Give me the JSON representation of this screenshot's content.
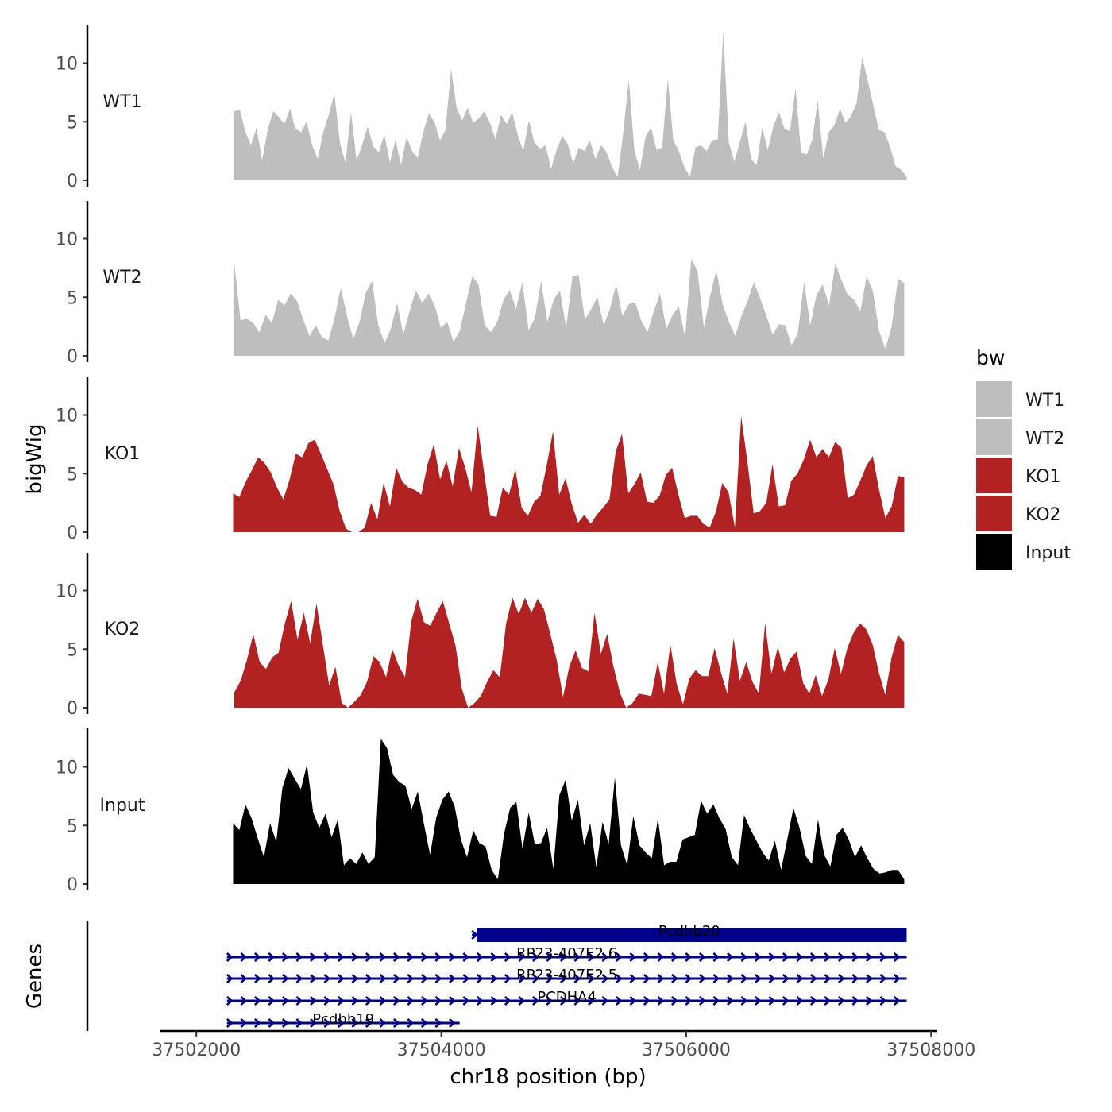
{
  "chart_data": {
    "type": "area",
    "ylabel": "bigWig",
    "genes_label": "Genes",
    "xlabel": "chr18 position (bp)",
    "xlim": [
      37501700,
      37508050
    ],
    "ylim": [
      0,
      13
    ],
    "x_ticks": [
      37502000,
      37504000,
      37506000,
      37508000
    ],
    "x_tick_labels": [
      "37502000",
      "37504000",
      "37506000",
      "37508000"
    ],
    "y_ticks": [
      0,
      5,
      10
    ],
    "y_tick_labels": [
      "0",
      "5",
      "10"
    ],
    "legend": {
      "title": "bw",
      "position": "right",
      "items": [
        {
          "label": "WT1",
          "color": "#bebebe"
        },
        {
          "label": "WT2",
          "color": "#bebebe"
        },
        {
          "label": "KO1",
          "color": "#b22222"
        },
        {
          "label": "KO2",
          "color": "#b22222"
        },
        {
          "label": "Input",
          "color": "#000000"
        }
      ]
    },
    "tracks": [
      {
        "name": "WT1",
        "color": "#bebebe",
        "x_start": 37502310,
        "x_end": 37507800,
        "values": [
          5.9,
          6.0,
          4.1,
          3.0,
          4.5,
          1.7,
          4.3,
          5.9,
          5.4,
          4.8,
          6.1,
          4.4,
          4.1,
          5.0,
          3.0,
          1.8,
          4.1,
          5.6,
          7.4,
          3.2,
          1.5,
          5.8,
          1.7,
          3.0,
          4.6,
          2.9,
          2.4,
          3.9,
          1.5,
          3.5,
          1.3,
          3.7,
          2.5,
          1.9,
          4.1,
          5.7,
          5.0,
          3.4,
          4.3,
          9.5,
          6.2,
          5.1,
          6.2,
          4.9,
          5.3,
          5.9,
          4.9,
          3.5,
          5.6,
          4.8,
          5.8,
          3.9,
          2.5,
          5.1,
          3.2,
          2.7,
          3.0,
          1.0,
          2.6,
          3.8,
          3.1,
          1.4,
          2.8,
          2.5,
          3.4,
          1.8,
          3.0,
          2.4,
          1.1,
          0.3,
          4.1,
          8.6,
          2.5,
          0.9,
          3.7,
          4.5,
          2.6,
          2.8,
          8.7,
          3.4,
          2.5,
          1.1,
          0.3,
          2.8,
          3.0,
          2.5,
          3.4,
          3.5,
          12.7,
          3.2,
          1.6,
          3.3,
          5.0,
          1.8,
          1.3,
          4.5,
          2.6,
          4.6,
          5.8,
          4.4,
          4.2,
          7.9,
          2.4,
          2.2,
          3.4,
          6.8,
          1.9,
          4.1,
          4.7,
          6.1,
          4.9,
          5.5,
          6.6,
          10.5,
          8.5,
          6.4,
          4.3,
          4.1,
          2.9,
          1.2,
          0.9,
          0.3
        ]
      },
      {
        "name": "WT2",
        "color": "#bebebe",
        "x_start": 37502310,
        "x_end": 37507780,
        "values": [
          7.9,
          3.0,
          3.2,
          2.8,
          2.0,
          3.5,
          2.8,
          4.8,
          4.3,
          5.3,
          4.7,
          3.1,
          1.7,
          2.6,
          1.6,
          1.3,
          3.2,
          5.8,
          3.4,
          1.4,
          2.9,
          5.4,
          6.4,
          2.6,
          1.1,
          2.3,
          4.5,
          1.8,
          3.8,
          5.6,
          4.5,
          5.3,
          4.3,
          2.4,
          2.9,
          1.2,
          2.1,
          4.5,
          6.8,
          6.1,
          2.6,
          2.0,
          2.9,
          4.8,
          5.6,
          4.0,
          6.3,
          2.2,
          3.2,
          6.4,
          2.9,
          4.8,
          5.6,
          2.4,
          6.8,
          6.9,
          3.1,
          4.0,
          5.0,
          2.6,
          4.0,
          6.1,
          3.4,
          4.4,
          4.6,
          3.0,
          2.0,
          3.8,
          5.3,
          2.3,
          3.5,
          4.2,
          1.6,
          8.3,
          7.2,
          2.4,
          5.1,
          7.3,
          4.4,
          2.9,
          1.7,
          3.4,
          4.7,
          6.3,
          4.9,
          3.4,
          1.8,
          2.7,
          2.6,
          0.9,
          1.9,
          6.3,
          2.6,
          5.2,
          6.1,
          4.3,
          7.9,
          6.4,
          5.2,
          4.8,
          3.8,
          6.8,
          5.5,
          2.1,
          0.6,
          2.5,
          6.6,
          6.2
        ]
      },
      {
        "name": "KO1",
        "color": "#b22222",
        "x_start": 37502300,
        "x_end": 37507780,
        "values": [
          3.3,
          3.0,
          4.3,
          5.3,
          6.4,
          5.9,
          5.1,
          3.8,
          2.8,
          4.5,
          6.7,
          6.4,
          7.6,
          7.9,
          6.7,
          5.4,
          4.1,
          1.8,
          0.3,
          0.0,
          0.0,
          0.4,
          2.5,
          1.1,
          4.2,
          2.2,
          5.5,
          4.3,
          3.8,
          3.6,
          3.2,
          5.8,
          7.5,
          4.5,
          6.1,
          3.9,
          7.2,
          5.5,
          3.4,
          9.1,
          5.2,
          1.4,
          1.3,
          3.8,
          3.2,
          5.4,
          2.1,
          1.4,
          2.6,
          3.1,
          5.7,
          8.6,
          3.2,
          4.6,
          2.4,
          0.8,
          1.5,
          0.7,
          1.5,
          2.1,
          2.8,
          6.9,
          8.4,
          3.3,
          4.1,
          5.1,
          2.6,
          2.5,
          3.1,
          4.9,
          5.5,
          3.2,
          1.2,
          1.4,
          1.4,
          0.7,
          0.4,
          1.8,
          4.2,
          3.4,
          0.4,
          9.9,
          6.0,
          1.6,
          1.8,
          2.5,
          5.8,
          2.2,
          2.3,
          4.4,
          5.0,
          6.2,
          7.9,
          6.4,
          7.1,
          6.4,
          7.7,
          7.2,
          2.9,
          3.2,
          4.4,
          5.7,
          6.5,
          3.6,
          1.2,
          2.2,
          4.8,
          4.7
        ]
      },
      {
        "name": "KO2",
        "color": "#b22222",
        "x_start": 37502310,
        "x_end": 37507780,
        "values": [
          1.3,
          2.3,
          4.1,
          6.3,
          3.9,
          3.3,
          4.3,
          4.7,
          7.2,
          9.1,
          5.8,
          8.1,
          5.5,
          8.9,
          5.4,
          1.9,
          3.5,
          0.4,
          0.0,
          0.5,
          1.1,
          2.2,
          4.4,
          3.9,
          2.6,
          5.0,
          3.6,
          2.6,
          7.4,
          9.3,
          7.3,
          7.0,
          8.1,
          9.1,
          7.2,
          5.3,
          1.6,
          0.0,
          0.4,
          1.0,
          2.2,
          3.2,
          2.6,
          7.2,
          9.4,
          8.0,
          9.4,
          8.1,
          9.3,
          8.4,
          6.3,
          4.1,
          0.9,
          3.5,
          4.9,
          3.4,
          3.1,
          8.1,
          4.6,
          6.3,
          3.5,
          1.3,
          0.0,
          0.4,
          1.2,
          1.1,
          1.0,
          3.9,
          1.2,
          5.4,
          2.0,
          0.3,
          2.5,
          3.2,
          2.7,
          2.7,
          5.1,
          3.0,
          1.2,
          5.9,
          2.3,
          3.9,
          2.2,
          1.2,
          7.2,
          2.9,
          5.2,
          3.0,
          4.2,
          4.8,
          2.1,
          1.2,
          2.8,
          1.0,
          2.4,
          5.1,
          2.9,
          5.1,
          6.4,
          7.2,
          6.7,
          5.4,
          3.0,
          1.1,
          4.3,
          6.2,
          5.6
        ]
      },
      {
        "name": "Input",
        "color": "#000000",
        "x_start": 37502300,
        "x_end": 37507780,
        "values": [
          5.2,
          4.6,
          6.8,
          5.6,
          3.9,
          2.3,
          5.2,
          3.6,
          8.2,
          9.9,
          9.0,
          8.1,
          10.2,
          6.1,
          4.8,
          6.0,
          4.0,
          5.5,
          1.6,
          2.2,
          1.7,
          2.7,
          1.7,
          2.3,
          12.4,
          11.6,
          9.3,
          8.7,
          8.4,
          6.4,
          7.9,
          5.1,
          2.5,
          5.7,
          7.2,
          7.9,
          6.6,
          3.8,
          2.3,
          4.6,
          3.5,
          3.2,
          1.2,
          0.4,
          4.3,
          6.5,
          7.0,
          3.0,
          6.1,
          3.4,
          3.5,
          4.8,
          1.3,
          7.6,
          8.9,
          5.4,
          7.2,
          3.3,
          5.2,
          1.4,
          5.3,
          3.4,
          9.1,
          3.3,
          1.6,
          5.8,
          3.3,
          2.7,
          2.2,
          5.6,
          1.6,
          1.9,
          1.9,
          3.8,
          4.0,
          4.2,
          7.1,
          6.0,
          6.8,
          5.6,
          4.7,
          2.3,
          1.6,
          5.9,
          4.7,
          3.7,
          2.7,
          2.0,
          3.7,
          1.2,
          3.8,
          6.5,
          4.8,
          2.4,
          1.7,
          5.5,
          2.5,
          1.5,
          4.2,
          4.8,
          3.8,
          2.3,
          3.3,
          2.2,
          1.3,
          0.9,
          1.0,
          1.2,
          1.2,
          0.4
        ]
      }
    ],
    "genes": [
      {
        "name": "Pcdhb20",
        "start": 37504250,
        "end": 37507800,
        "row": 0,
        "type": "exon"
      },
      {
        "name": "RP23-407E2.6",
        "start": 37502250,
        "end": 37507800,
        "row": 1,
        "type": "intron"
      },
      {
        "name": "RP23-407E2.5",
        "start": 37502250,
        "end": 37507800,
        "row": 2,
        "type": "intron"
      },
      {
        "name": "PCDHA4",
        "start": 37502250,
        "end": 37507800,
        "row": 3,
        "type": "intron"
      },
      {
        "name": "Pcdhb19",
        "start": 37502250,
        "end": 37504150,
        "row": 4,
        "type": "intron"
      }
    ]
  }
}
